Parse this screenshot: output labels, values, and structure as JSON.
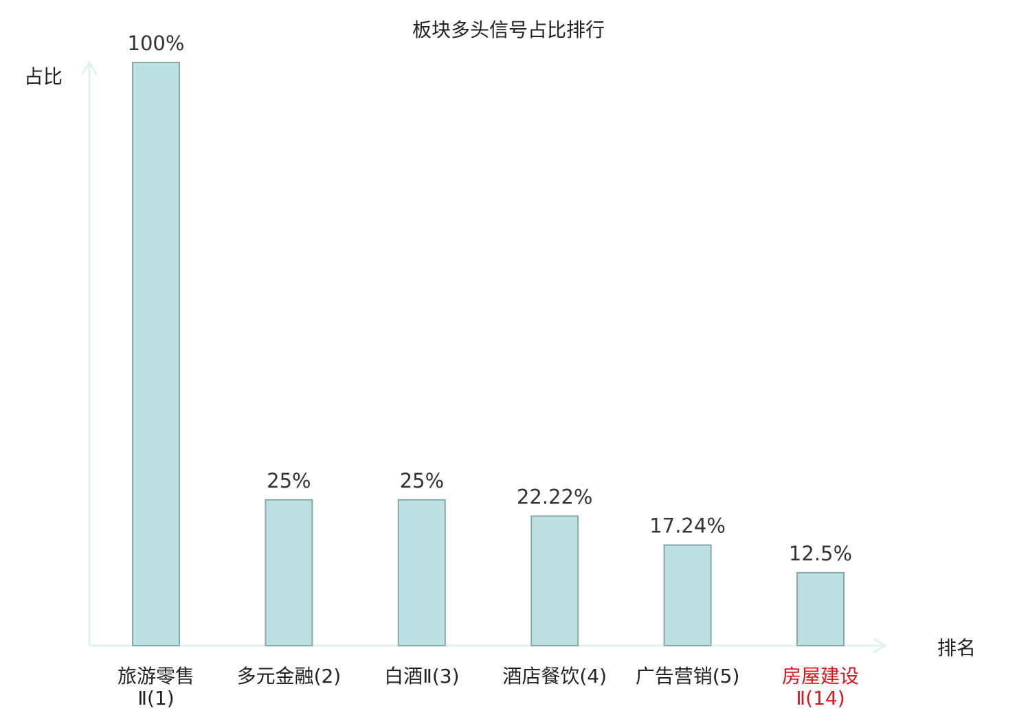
{
  "chart_data": {
    "type": "bar",
    "title": "板块多头信号占比排行",
    "ylabel": "占比",
    "xlabel": "排名",
    "ylim": [
      0,
      100
    ],
    "grid": false,
    "categories": [
      {
        "lines": [
          "旅游零售",
          "Ⅱ(1)"
        ],
        "highlight": false
      },
      {
        "lines": [
          "多元金融(2)"
        ],
        "highlight": false
      },
      {
        "lines": [
          "白酒Ⅱ(3)"
        ],
        "highlight": false
      },
      {
        "lines": [
          "酒店餐饮(4)"
        ],
        "highlight": false
      },
      {
        "lines": [
          "广告营销(5)"
        ],
        "highlight": false
      },
      {
        "lines": [
          "房屋建设",
          "Ⅱ(14)"
        ],
        "highlight": true
      }
    ],
    "values": [
      100,
      25,
      25,
      22.22,
      17.24,
      12.5
    ],
    "value_labels": [
      "100%",
      "25%",
      "25%",
      "22.22%",
      "17.24%",
      "12.5%"
    ],
    "colors": {
      "bar_fill": "#bde0e3",
      "bar_stroke": "#86a8ab",
      "axis": "#dff2ef",
      "text": "#222222",
      "value_text": "#333333",
      "highlight": "#e0141e"
    }
  }
}
